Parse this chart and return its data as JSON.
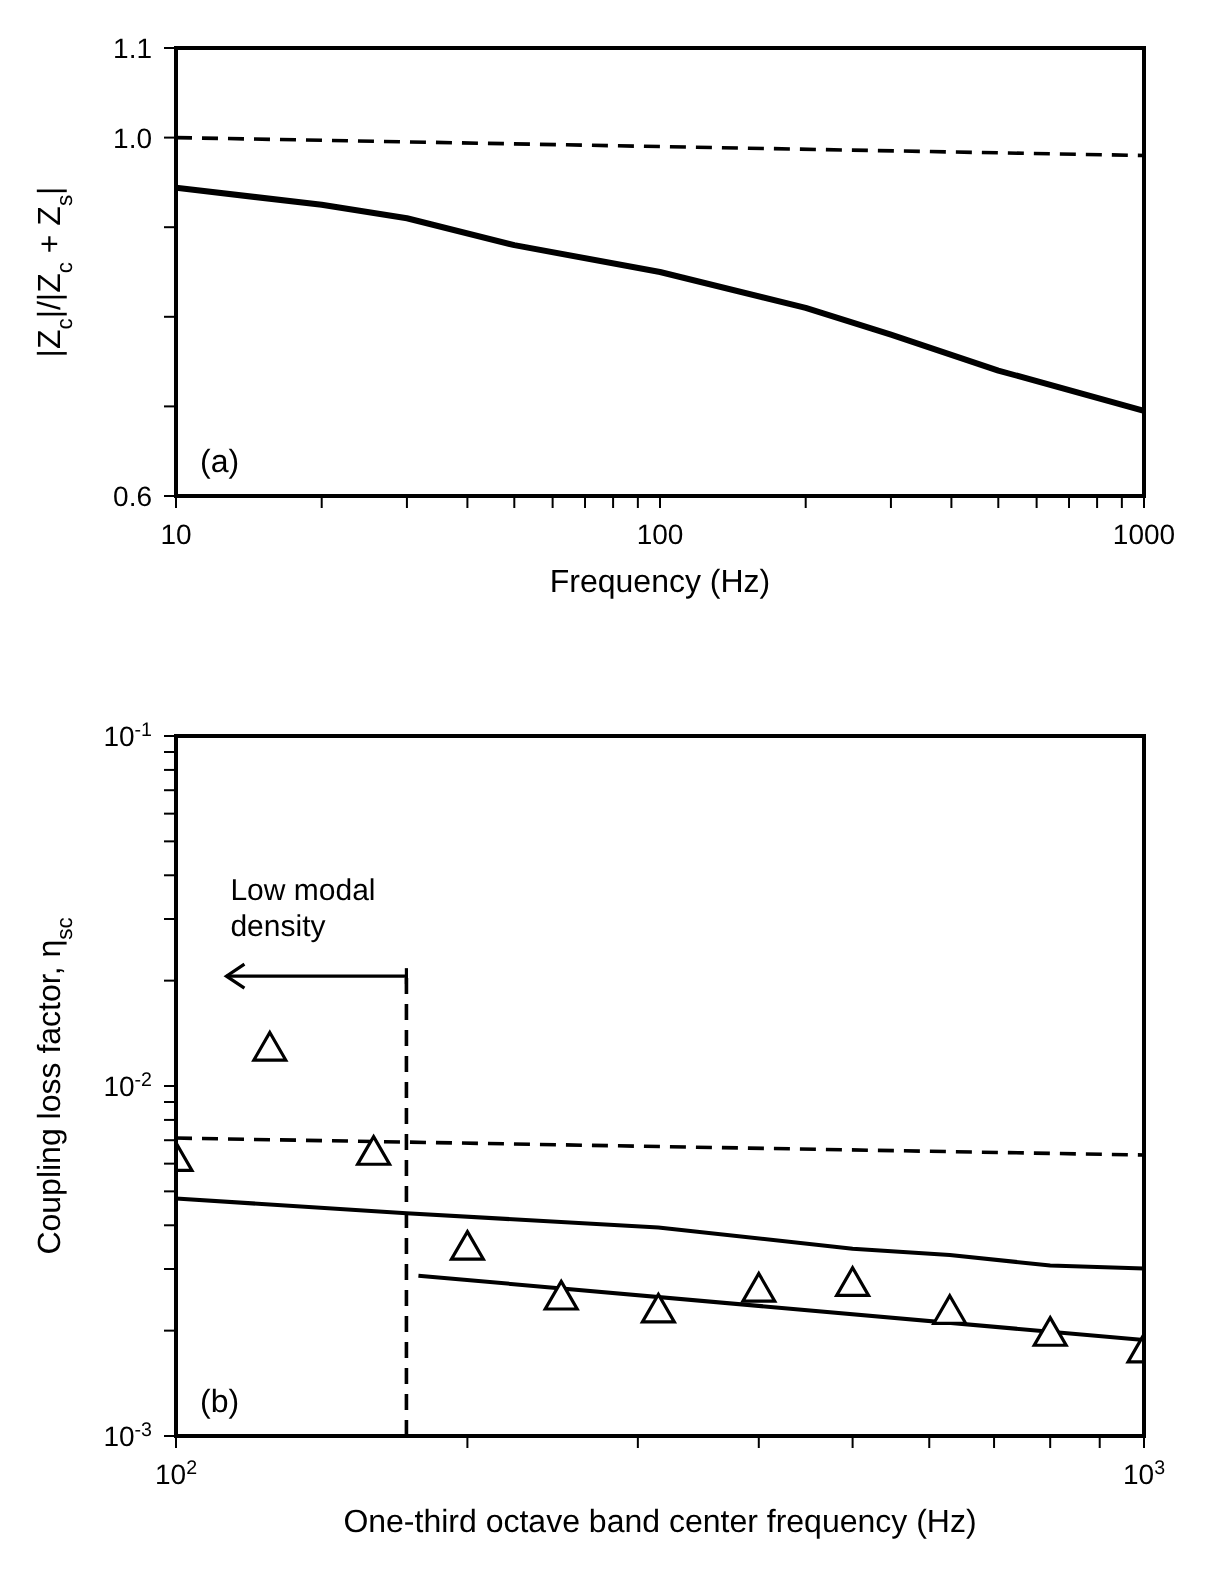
{
  "chart_data": [
    {
      "type": "line",
      "xlabel": "Frequency (Hz)",
      "ylabel": "|Z$_{c}$|/|Z$_{c}$ + Z$_{s}$|",
      "log": "x",
      "marker": "none",
      "xlim": [
        10,
        1000
      ],
      "xticks": [
        10,
        {
          "value": 20,
          "label": null
        },
        {
          "value": 30,
          "label": null
        },
        {
          "value": 40,
          "label": null
        },
        {
          "value": 50,
          "label": null
        },
        {
          "value": 60,
          "label": null
        },
        {
          "value": 70,
          "label": null
        },
        {
          "value": 80,
          "label": null
        },
        {
          "value": 90,
          "label": null
        },
        100,
        {
          "value": 200,
          "label": null
        },
        {
          "value": 300,
          "label": null
        },
        {
          "value": 400,
          "label": null
        },
        {
          "value": 500,
          "label": null
        },
        {
          "value": 600,
          "label": null
        },
        {
          "value": 700,
          "label": null
        },
        {
          "value": 800,
          "label": null
        },
        {
          "value": 900,
          "label": null
        },
        1000
      ],
      "ylim": [
        0.6,
        1.1
      ],
      "yticks": [
        0.6,
        {
          "value": 0.7,
          "label": null
        },
        {
          "value": 0.8,
          "label": null
        },
        {
          "value": 0.9,
          "label": null
        },
        {
          "value": 1.0,
          "label": "1.0"
        },
        1.1
      ],
      "annotations": [
        "(a)"
      ],
      "series": [
        {
          "color": "#000000",
          "line_style": "solid",
          "x": [
            10,
            20,
            30,
            50,
            100,
            200,
            300,
            500,
            1000
          ],
          "values": [
            0.944,
            0.925,
            0.91,
            0.88,
            0.85,
            0.81,
            0.78,
            0.74,
            0.695
          ]
        },
        {
          "color": "#000000",
          "line_style": "dashed",
          "x": [
            10,
            1000
          ],
          "values": [
            1.0,
            0.98
          ]
        }
      ]
    },
    {
      "type": "line",
      "xlabel": "One-third octave band center frequency (Hz)",
      "ylabel": "Coupling loss factor, η$_{sc}$",
      "log": "xy",
      "xlim": [
        100,
        1000
      ],
      "xticks": [
        {
          "value": 100,
          "label": "10$^{2}$"
        },
        {
          "value": 200,
          "label": null
        },
        {
          "value": 300,
          "label": null
        },
        {
          "value": 400,
          "label": null
        },
        {
          "value": 500,
          "label": null
        },
        {
          "value": 600,
          "label": null
        },
        {
          "value": 700,
          "label": null
        },
        {
          "value": 800,
          "label": null
        },
        {
          "value": 900,
          "label": null
        },
        {
          "value": 1000,
          "label": "10$^{3}$"
        }
      ],
      "ylim": [
        0.001,
        0.1
      ],
      "yticks": [
        {
          "value": 0.001,
          "label": "10$^{-3}$"
        },
        {
          "value": 0.002,
          "label": null
        },
        {
          "value": 0.003,
          "label": null
        },
        {
          "value": 0.004,
          "label": null
        },
        {
          "value": 0.005,
          "label": null
        },
        {
          "value": 0.006,
          "label": null
        },
        {
          "value": 0.007,
          "label": null
        },
        {
          "value": 0.008,
          "label": null
        },
        {
          "value": 0.009,
          "label": null
        },
        {
          "value": 0.01,
          "label": "10$^{-2}$"
        },
        {
          "value": 0.02,
          "label": null
        },
        {
          "value": 0.03,
          "label": null
        },
        {
          "value": 0.04,
          "label": null
        },
        {
          "value": 0.05,
          "label": null
        },
        {
          "value": 0.06,
          "label": null
        },
        {
          "value": 0.07,
          "label": null
        },
        {
          "value": 0.08,
          "label": null
        },
        {
          "value": 0.09,
          "label": null
        },
        {
          "value": 0.1,
          "label": "10$^{-1}$"
        }
      ],
      "annotations": [
        {
          "text": "Low modal density",
          "x": 173,
          "y": 0.0206
        },
        "(b)"
      ],
      "series": [
        {
          "type": "scatter",
          "color": "#000000",
          "marker": "triangle",
          "x": [
            100,
            125,
            160,
            200,
            250,
            315,
            400,
            500,
            630,
            800,
            1000
          ],
          "values": [
            0.0061,
            0.0126,
            0.00635,
            0.0034,
            0.00245,
            0.00225,
            0.00258,
            0.00268,
            0.00223,
            0.00193,
            0.00173
          ]
        },
        {
          "color": "#000000",
          "marker": "none",
          "line_style": "solid",
          "x": [
            100,
            173,
            315,
            500,
            630,
            800,
            1000
          ],
          "values": [
            0.00477,
            0.00433,
            0.00394,
            0.00343,
            0.00329,
            0.00307,
            0.00301
          ]
        },
        {
          "color": "#000000",
          "marker": "none",
          "line_style": "solid",
          "x": [
            178,
            1000
          ],
          "values": [
            0.00287,
            0.00188
          ]
        },
        {
          "color": "#000000",
          "marker": "none",
          "line_style": "dashed",
          "x": [
            100,
            1000
          ],
          "values": [
            0.0071,
            0.00635
          ]
        },
        {
          "color": "#000000",
          "marker": "none",
          "line_style": "dashed",
          "x": [
            173,
            173
          ],
          "values": [
            0.001,
            0.0206
          ]
        }
      ]
    }
  ]
}
